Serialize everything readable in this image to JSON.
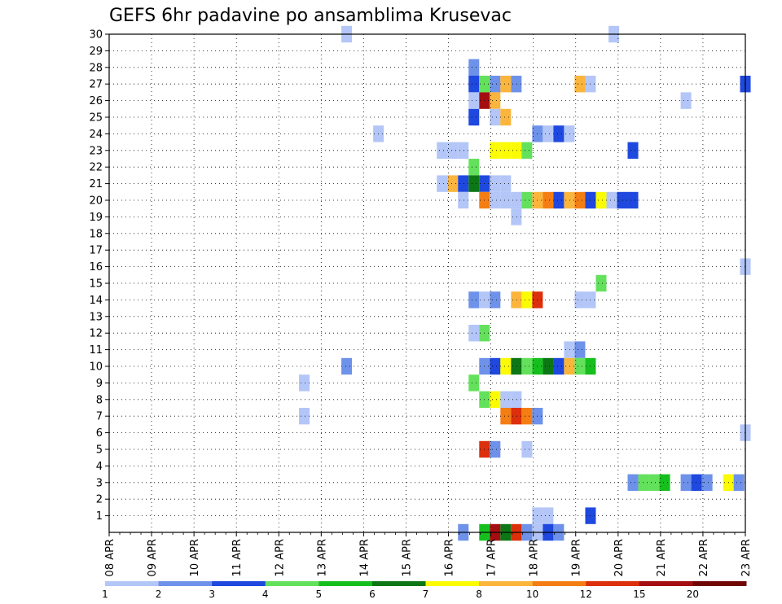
{
  "chart_data": {
    "type": "heatmap",
    "title": "GEFS 6hr padavine po ansamblima Krusevac",
    "xlabel": "",
    "ylabel": "",
    "grid": true,
    "x_tick_labels": [
      "08 APR",
      "09 APR",
      "10 APR",
      "11 APR",
      "12 APR",
      "13 APR",
      "14 APR",
      "15 APR",
      "16 APR",
      "17 APR",
      "18 APR",
      "19 APR",
      "20 APR",
      "21 APR",
      "22 APR",
      "23 APR"
    ],
    "y_tick_labels": [
      "1",
      "2",
      "3",
      "4",
      "5",
      "6",
      "7",
      "8",
      "9",
      "10",
      "11",
      "12",
      "13",
      "14",
      "15",
      "16",
      "17",
      "18",
      "19",
      "20",
      "21",
      "22",
      "23",
      "24",
      "25",
      "26",
      "27",
      "28",
      "29",
      "30"
    ],
    "x_range_days": [
      8,
      23
    ],
    "y_range_members": [
      0,
      30
    ],
    "colorbar": {
      "labels": [
        "1",
        "2",
        "3",
        "4",
        "5",
        "6",
        "7",
        "8",
        "10",
        "12",
        "15",
        "20"
      ],
      "colors": [
        "#b3c6f7",
        "#6e92ea",
        "#1f48df",
        "#64e15c",
        "#17bf1e",
        "#0d7716",
        "#fbfb04",
        "#fbb53c",
        "#f47e13",
        "#dc2f0b",
        "#a50e10",
        "#6f0505"
      ]
    },
    "cells": [
      {
        "member": 30,
        "day": 13.6,
        "level": 1
      },
      {
        "member": 30,
        "day": 19.9,
        "level": 1
      },
      {
        "member": 28,
        "day": 16.6,
        "level": 2
      },
      {
        "member": 27,
        "day": 16.6,
        "level": 3
      },
      {
        "member": 27,
        "day": 16.85,
        "level": 4
      },
      {
        "member": 27,
        "day": 17.1,
        "level": 2
      },
      {
        "member": 27,
        "day": 17.35,
        "level": 8
      },
      {
        "member": 27,
        "day": 17.6,
        "level": 2
      },
      {
        "member": 27,
        "day": 19.1,
        "level": 8
      },
      {
        "member": 27,
        "day": 19.35,
        "level": 1
      },
      {
        "member": 27,
        "day": 23.0,
        "level": 3
      },
      {
        "member": 26,
        "day": 16.6,
        "level": 1
      },
      {
        "member": 26,
        "day": 16.85,
        "level": 11
      },
      {
        "member": 26,
        "day": 17.1,
        "level": 8
      },
      {
        "member": 26,
        "day": 21.6,
        "level": 1
      },
      {
        "member": 25,
        "day": 16.6,
        "level": 3
      },
      {
        "member": 25,
        "day": 17.1,
        "level": 1
      },
      {
        "member": 25,
        "day": 17.35,
        "level": 8
      },
      {
        "member": 24,
        "day": 14.35,
        "level": 1
      },
      {
        "member": 24,
        "day": 18.1,
        "level": 2
      },
      {
        "member": 24,
        "day": 18.35,
        "level": 1
      },
      {
        "member": 24,
        "day": 18.6,
        "level": 3
      },
      {
        "member": 24,
        "day": 18.85,
        "level": 1
      },
      {
        "member": 23,
        "day": 15.85,
        "level": 1
      },
      {
        "member": 23,
        "day": 16.1,
        "level": 1
      },
      {
        "member": 23,
        "day": 16.35,
        "level": 1
      },
      {
        "member": 23,
        "day": 17.1,
        "level": 7
      },
      {
        "member": 23,
        "day": 17.35,
        "level": 7
      },
      {
        "member": 23,
        "day": 17.6,
        "level": 7
      },
      {
        "member": 23,
        "day": 17.85,
        "level": 4
      },
      {
        "member": 23,
        "day": 20.35,
        "level": 3
      },
      {
        "member": 22,
        "day": 16.6,
        "level": 4
      },
      {
        "member": 21,
        "day": 15.85,
        "level": 1
      },
      {
        "member": 21,
        "day": 16.1,
        "level": 8
      },
      {
        "member": 21,
        "day": 16.35,
        "level": 3
      },
      {
        "member": 21,
        "day": 16.6,
        "level": 6
      },
      {
        "member": 21,
        "day": 16.85,
        "level": 3
      },
      {
        "member": 21,
        "day": 17.1,
        "level": 1
      },
      {
        "member": 21,
        "day": 17.35,
        "level": 1
      },
      {
        "member": 20,
        "day": 16.35,
        "level": 1
      },
      {
        "member": 20,
        "day": 16.85,
        "level": 9
      },
      {
        "member": 20,
        "day": 17.1,
        "level": 1
      },
      {
        "member": 20,
        "day": 17.35,
        "level": 1
      },
      {
        "member": 20,
        "day": 17.6,
        "level": 1
      },
      {
        "member": 20,
        "day": 17.85,
        "level": 4
      },
      {
        "member": 20,
        "day": 18.1,
        "level": 8
      },
      {
        "member": 20,
        "day": 18.35,
        "level": 9
      },
      {
        "member": 20,
        "day": 18.6,
        "level": 3
      },
      {
        "member": 20,
        "day": 18.85,
        "level": 8
      },
      {
        "member": 20,
        "day": 19.1,
        "level": 9
      },
      {
        "member": 20,
        "day": 19.35,
        "level": 3
      },
      {
        "member": 20,
        "day": 19.6,
        "level": 7
      },
      {
        "member": 20,
        "day": 19.85,
        "level": 1
      },
      {
        "member": 20,
        "day": 20.1,
        "level": 3
      },
      {
        "member": 20,
        "day": 20.35,
        "level": 3
      },
      {
        "member": 19,
        "day": 17.6,
        "level": 1
      },
      {
        "member": 16,
        "day": 23.0,
        "level": 1
      },
      {
        "member": 15,
        "day": 19.6,
        "level": 4
      },
      {
        "member": 14,
        "day": 16.6,
        "level": 2
      },
      {
        "member": 14,
        "day": 16.85,
        "level": 1
      },
      {
        "member": 14,
        "day": 17.1,
        "level": 2
      },
      {
        "member": 14,
        "day": 17.6,
        "level": 8
      },
      {
        "member": 14,
        "day": 17.85,
        "level": 7
      },
      {
        "member": 14,
        "day": 18.1,
        "level": 10
      },
      {
        "member": 14,
        "day": 19.1,
        "level": 1
      },
      {
        "member": 14,
        "day": 19.35,
        "level": 1
      },
      {
        "member": 12,
        "day": 16.6,
        "level": 1
      },
      {
        "member": 12,
        "day": 16.85,
        "level": 4
      },
      {
        "member": 11,
        "day": 18.85,
        "level": 1
      },
      {
        "member": 11,
        "day": 19.1,
        "level": 2
      },
      {
        "member": 10,
        "day": 13.6,
        "level": 2
      },
      {
        "member": 10,
        "day": 16.85,
        "level": 2
      },
      {
        "member": 10,
        "day": 17.1,
        "level": 3
      },
      {
        "member": 10,
        "day": 17.35,
        "level": 7
      },
      {
        "member": 10,
        "day": 17.6,
        "level": 6
      },
      {
        "member": 10,
        "day": 17.85,
        "level": 4
      },
      {
        "member": 10,
        "day": 18.1,
        "level": 5
      },
      {
        "member": 10,
        "day": 18.35,
        "level": 6
      },
      {
        "member": 10,
        "day": 18.6,
        "level": 3
      },
      {
        "member": 10,
        "day": 18.85,
        "level": 8
      },
      {
        "member": 10,
        "day": 19.1,
        "level": 4
      },
      {
        "member": 10,
        "day": 19.35,
        "level": 5
      },
      {
        "member": 9,
        "day": 12.6,
        "level": 1
      },
      {
        "member": 9,
        "day": 16.6,
        "level": 4
      },
      {
        "member": 8,
        "day": 16.85,
        "level": 4
      },
      {
        "member": 8,
        "day": 17.1,
        "level": 7
      },
      {
        "member": 8,
        "day": 17.35,
        "level": 1
      },
      {
        "member": 8,
        "day": 17.6,
        "level": 1
      },
      {
        "member": 7,
        "day": 12.6,
        "level": 1
      },
      {
        "member": 7,
        "day": 17.35,
        "level": 9
      },
      {
        "member": 7,
        "day": 17.6,
        "level": 10
      },
      {
        "member": 7,
        "day": 17.85,
        "level": 9
      },
      {
        "member": 7,
        "day": 18.1,
        "level": 2
      },
      {
        "member": 6,
        "day": 23.0,
        "level": 1
      },
      {
        "member": 5,
        "day": 16.85,
        "level": 10
      },
      {
        "member": 5,
        "day": 17.1,
        "level": 2
      },
      {
        "member": 5,
        "day": 17.85,
        "level": 1
      },
      {
        "member": 3,
        "day": 20.35,
        "level": 2
      },
      {
        "member": 3,
        "day": 20.6,
        "level": 4
      },
      {
        "member": 3,
        "day": 20.85,
        "level": 4
      },
      {
        "member": 3,
        "day": 21.1,
        "level": 5
      },
      {
        "member": 3,
        "day": 21.6,
        "level": 2
      },
      {
        "member": 3,
        "day": 21.85,
        "level": 3
      },
      {
        "member": 3,
        "day": 22.1,
        "level": 2
      },
      {
        "member": 3,
        "day": 22.6,
        "level": 7
      },
      {
        "member": 3,
        "day": 22.85,
        "level": 2
      },
      {
        "member": 1,
        "day": 18.1,
        "level": 1
      },
      {
        "member": 1,
        "day": 18.35,
        "level": 1
      },
      {
        "member": 1,
        "day": 19.35,
        "level": 3
      },
      {
        "member": 0,
        "day": 16.35,
        "level": 2
      },
      {
        "member": 0,
        "day": 16.85,
        "level": 5
      },
      {
        "member": 0,
        "day": 17.1,
        "level": 11
      },
      {
        "member": 0,
        "day": 17.35,
        "level": 6
      },
      {
        "member": 0,
        "day": 17.6,
        "level": 10
      },
      {
        "member": 0,
        "day": 17.85,
        "level": 2
      },
      {
        "member": 0,
        "day": 18.1,
        "level": 1
      },
      {
        "member": 0,
        "day": 18.35,
        "level": 3
      },
      {
        "member": 0,
        "day": 18.6,
        "level": 2
      }
    ]
  }
}
